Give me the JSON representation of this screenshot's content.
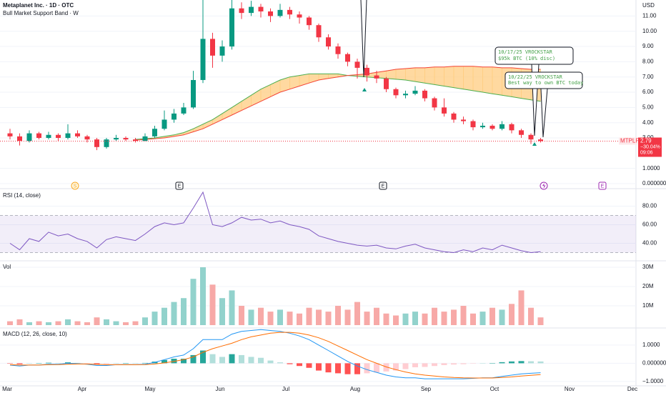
{
  "chart_data": [
    {
      "type": "candlestick",
      "title": "Metaplanet Inc. · 1D · OTC",
      "subtitle": "Bull Market Support Band · W",
      "currency": "USD",
      "symbol": "MTPLF",
      "last_price": 2.79,
      "change_label": "−30.04%",
      "time_label": "09:06",
      "up_color": "#089981",
      "down_color": "#f23645",
      "open": [
        3.3,
        3.1,
        2.8,
        3.3,
        3.0,
        3.2,
        3.0,
        3.3,
        3.1,
        2.9,
        2.4,
        2.9,
        3.0,
        2.9,
        2.8,
        3.1,
        3.6,
        4.2,
        4.6,
        5.0,
        6.8,
        9.5,
        8.4,
        9.0,
        11.5,
        11.2,
        11.6,
        11.3,
        11.0,
        11.4,
        11.1,
        10.9,
        10.4,
        9.6,
        9.0,
        8.5,
        8.0,
        7.6,
        7.1,
        6.9,
        6.2,
        5.8,
        5.9,
        6.1,
        5.6,
        5.0,
        4.6,
        4.2,
        4.1,
        3.7,
        3.8,
        3.6,
        3.9,
        3.5,
        3.2,
        2.9
      ],
      "high": [
        3.6,
        3.3,
        3.5,
        3.4,
        3.4,
        3.3,
        3.9,
        3.5,
        3.2,
        3.0,
        3.0,
        3.2,
        3.1,
        3.0,
        3.3,
        3.8,
        4.8,
        4.9,
        5.3,
        7.4,
        12.5,
        9.9,
        9.4,
        12.4,
        11.9,
        12.0,
        11.8,
        11.5,
        11.8,
        11.6,
        11.3,
        11.0,
        10.5,
        9.8,
        9.2,
        8.6,
        8.2,
        7.8,
        7.4,
        7.0,
        6.3,
        6.1,
        6.4,
        6.2,
        5.7,
        5.6,
        4.7,
        4.4,
        4.2,
        4.0,
        3.9,
        4.1,
        4.0,
        3.6,
        3.3,
        3.0
      ],
      "low": [
        2.9,
        2.5,
        2.7,
        2.9,
        2.9,
        2.8,
        2.9,
        3.0,
        2.7,
        2.2,
        2.3,
        2.8,
        2.8,
        2.7,
        2.8,
        3.0,
        3.5,
        4.0,
        4.5,
        4.9,
        6.6,
        7.6,
        8.0,
        8.8,
        10.8,
        11.0,
        10.9,
        10.6,
        10.9,
        10.8,
        10.5,
        10.1,
        9.3,
        8.8,
        8.2,
        7.7,
        6.9,
        6.7,
        6.6,
        6.0,
        5.6,
        5.6,
        5.8,
        5.4,
        4.8,
        4.4,
        4.0,
        3.9,
        3.5,
        3.6,
        3.5,
        3.5,
        3.3,
        3.0,
        2.6,
        2.7
      ],
      "close": [
        3.1,
        2.8,
        3.3,
        3.0,
        3.2,
        3.0,
        3.3,
        3.1,
        2.9,
        2.4,
        2.9,
        3.0,
        2.9,
        2.8,
        3.1,
        3.6,
        4.2,
        4.6,
        5.0,
        6.8,
        9.5,
        8.4,
        9.0,
        11.5,
        11.2,
        11.6,
        11.3,
        11.0,
        11.4,
        11.1,
        10.9,
        10.4,
        9.6,
        9.0,
        8.5,
        8.0,
        7.6,
        7.1,
        6.9,
        6.2,
        5.8,
        5.9,
        6.1,
        5.6,
        5.0,
        4.6,
        4.2,
        4.1,
        3.7,
        3.8,
        3.6,
        3.9,
        3.5,
        3.2,
        2.9,
        2.79
      ],
      "band": [
        {
          "color": "#4caf50",
          "values": [
            null,
            null,
            null,
            null,
            null,
            null,
            null,
            null,
            null,
            null,
            null,
            null,
            null,
            2.9,
            2.95,
            3.0,
            3.1,
            3.2,
            3.35,
            3.6,
            3.9,
            4.2,
            4.6,
            5.0,
            5.4,
            5.8,
            6.2,
            6.5,
            6.8,
            7.0,
            7.1,
            7.2,
            7.2,
            7.2,
            7.2,
            7.1,
            7.05,
            7.0,
            6.95,
            6.9,
            6.85,
            6.8,
            6.7,
            6.6,
            6.5,
            6.4,
            6.3,
            6.2,
            6.1,
            6.0,
            5.9,
            5.8,
            5.7,
            5.6,
            5.5,
            5.4
          ]
        },
        {
          "color": "#f44336",
          "values": [
            null,
            null,
            null,
            null,
            null,
            null,
            null,
            null,
            null,
            null,
            null,
            null,
            null,
            2.85,
            2.9,
            2.95,
            3.0,
            3.1,
            3.2,
            3.4,
            3.6,
            3.9,
            4.2,
            4.5,
            4.8,
            5.1,
            5.4,
            5.7,
            6.0,
            6.2,
            6.4,
            6.6,
            6.8,
            6.9,
            7.0,
            7.1,
            7.15,
            7.2,
            7.3,
            7.4,
            7.5,
            7.55,
            7.6,
            7.6,
            7.65,
            7.65,
            7.7,
            7.7,
            7.7,
            7.65,
            7.65,
            7.6,
            7.6,
            7.55,
            7.5,
            7.5
          ]
        }
      ],
      "band_fill": "#ffcc80",
      "ylim": [
        0,
        12.05
      ],
      "yticks": [
        {
          "value": 0,
          "label": "0.000000"
        },
        {
          "value": 1,
          "label": "1.0000"
        },
        {
          "value": 3,
          "label": "3.00"
        },
        {
          "value": 4,
          "label": "4.00"
        },
        {
          "value": 5,
          "label": "5.00"
        },
        {
          "value": 6,
          "label": "6.00"
        },
        {
          "value": 7,
          "label": "7.00"
        },
        {
          "value": 8,
          "label": "8.00"
        },
        {
          "value": 9,
          "label": "9.00"
        },
        {
          "value": 10,
          "label": "10.00"
        },
        {
          "value": 11,
          "label": "11.00"
        }
      ],
      "grid": true,
      "x_labels": [
        "Mar",
        "Apr",
        "May",
        "Jun",
        "Jul",
        "Aug",
        "Sep",
        "Oct",
        "Nov",
        "Dec"
      ],
      "events": [
        "S",
        "E",
        "E",
        "E"
      ],
      "annotations": [
        {
          "lines": [
            "10/17/25 VROCKSTAR",
            "$95k BTC (10% disc)"
          ]
        },
        {
          "lines": [
            "10/22/25 VROCKSTAR",
            "Best way to own BTC today"
          ]
        }
      ]
    },
    {
      "type": "line",
      "title": "RSI (14, close)",
      "color": "#7e57c2",
      "values": [
        40,
        33,
        45,
        42,
        52,
        48,
        50,
        45,
        42,
        35,
        44,
        47,
        45,
        43,
        50,
        58,
        62,
        60,
        62,
        78,
        95,
        60,
        58,
        62,
        68,
        65,
        66,
        62,
        64,
        60,
        58,
        55,
        48,
        45,
        42,
        40,
        38,
        37,
        38,
        35,
        34,
        37,
        39,
        35,
        33,
        31,
        30,
        33,
        31,
        35,
        33,
        38,
        35,
        32,
        30,
        31
      ],
      "band": [
        30,
        70
      ],
      "ylim": [
        23.5,
        97.3
      ],
      "yticks": [
        {
          "value": 80,
          "label": "80.00"
        },
        {
          "value": 60,
          "label": "60.00"
        },
        {
          "value": 40,
          "label": "40.00"
        }
      ]
    },
    {
      "type": "bar",
      "title": "Vol",
      "up_color": "#92d2cc",
      "down_color": "#f7a9a7",
      "values": [
        2,
        3,
        1.5,
        2,
        1.5,
        2,
        3,
        2,
        1.5,
        4,
        3,
        2,
        1.5,
        2,
        4,
        7,
        9,
        12,
        14,
        24,
        30,
        21,
        14,
        18,
        10,
        8,
        9,
        7,
        8,
        7,
        6,
        9,
        8,
        7,
        10,
        8,
        12,
        7,
        9,
        6,
        5,
        6,
        7,
        6,
        9,
        7,
        8,
        10,
        6,
        7,
        9,
        8,
        11,
        18,
        9,
        4
      ],
      "ylim": [
        0,
        32.6
      ],
      "yticks": [
        {
          "value": 30,
          "label": "30M"
        },
        {
          "value": 20,
          "label": "20M"
        },
        {
          "value": 10,
          "label": "10M"
        }
      ]
    },
    {
      "type": "macd",
      "title": "MACD (12, 26, close, 10)",
      "macd": {
        "color": "#2196f3",
        "values": [
          -0.1,
          -0.15,
          -0.1,
          -0.1,
          -0.05,
          -0.05,
          0,
          -0.02,
          -0.05,
          -0.12,
          -0.12,
          -0.08,
          -0.07,
          -0.08,
          -0.05,
          0.05,
          0.2,
          0.35,
          0.45,
          0.8,
          1.3,
          1.3,
          1.3,
          1.6,
          1.75,
          1.8,
          1.85,
          1.8,
          1.75,
          1.65,
          1.5,
          1.3,
          1.0,
          0.7,
          0.4,
          0.1,
          -0.15,
          -0.35,
          -0.5,
          -0.65,
          -0.75,
          -0.8,
          -0.8,
          -0.85,
          -0.85,
          -0.85,
          -0.85,
          -0.85,
          -0.83,
          -0.8,
          -0.8,
          -0.72,
          -0.65,
          -0.58,
          -0.55,
          -0.52
        ]
      },
      "signal": {
        "color": "#ff6d00",
        "values": [
          -0.08,
          -0.1,
          -0.1,
          -0.1,
          -0.08,
          -0.07,
          -0.05,
          -0.04,
          -0.04,
          -0.06,
          -0.08,
          -0.08,
          -0.08,
          -0.08,
          -0.07,
          -0.04,
          0.02,
          0.1,
          0.2,
          0.35,
          0.6,
          0.8,
          0.95,
          1.1,
          1.3,
          1.45,
          1.55,
          1.65,
          1.7,
          1.7,
          1.65,
          1.55,
          1.4,
          1.2,
          0.95,
          0.7,
          0.45,
          0.2,
          0,
          -0.2,
          -0.35,
          -0.48,
          -0.58,
          -0.65,
          -0.7,
          -0.75,
          -0.78,
          -0.8,
          -0.81,
          -0.81,
          -0.81,
          -0.78,
          -0.75,
          -0.7,
          -0.66,
          -0.62
        ]
      },
      "histogram": [
        -0.02,
        -0.05,
        0,
        0,
        0.03,
        0.02,
        0.05,
        0.02,
        -0.01,
        -0.06,
        -0.04,
        0,
        0.01,
        0,
        0.02,
        0.09,
        0.18,
        0.25,
        0.25,
        0.45,
        0.7,
        0.5,
        0.35,
        0.5,
        0.45,
        0.35,
        0.3,
        0.15,
        0.05,
        -0.05,
        -0.15,
        -0.25,
        -0.4,
        -0.5,
        -0.55,
        -0.6,
        -0.6,
        -0.55,
        -0.5,
        -0.45,
        -0.4,
        -0.32,
        -0.22,
        -0.2,
        -0.15,
        -0.1,
        -0.07,
        -0.05,
        -0.02,
        0.01,
        0.01,
        0.06,
        0.1,
        0.12,
        0.11,
        0.1
      ],
      "ylim": [
        -1.24,
        1.82
      ],
      "yticks": [
        {
          "value": 1,
          "label": "1.0000"
        },
        {
          "value": 0,
          "label": "0.000000"
        },
        {
          "value": -1,
          "label": "−1.0000"
        }
      ]
    }
  ]
}
